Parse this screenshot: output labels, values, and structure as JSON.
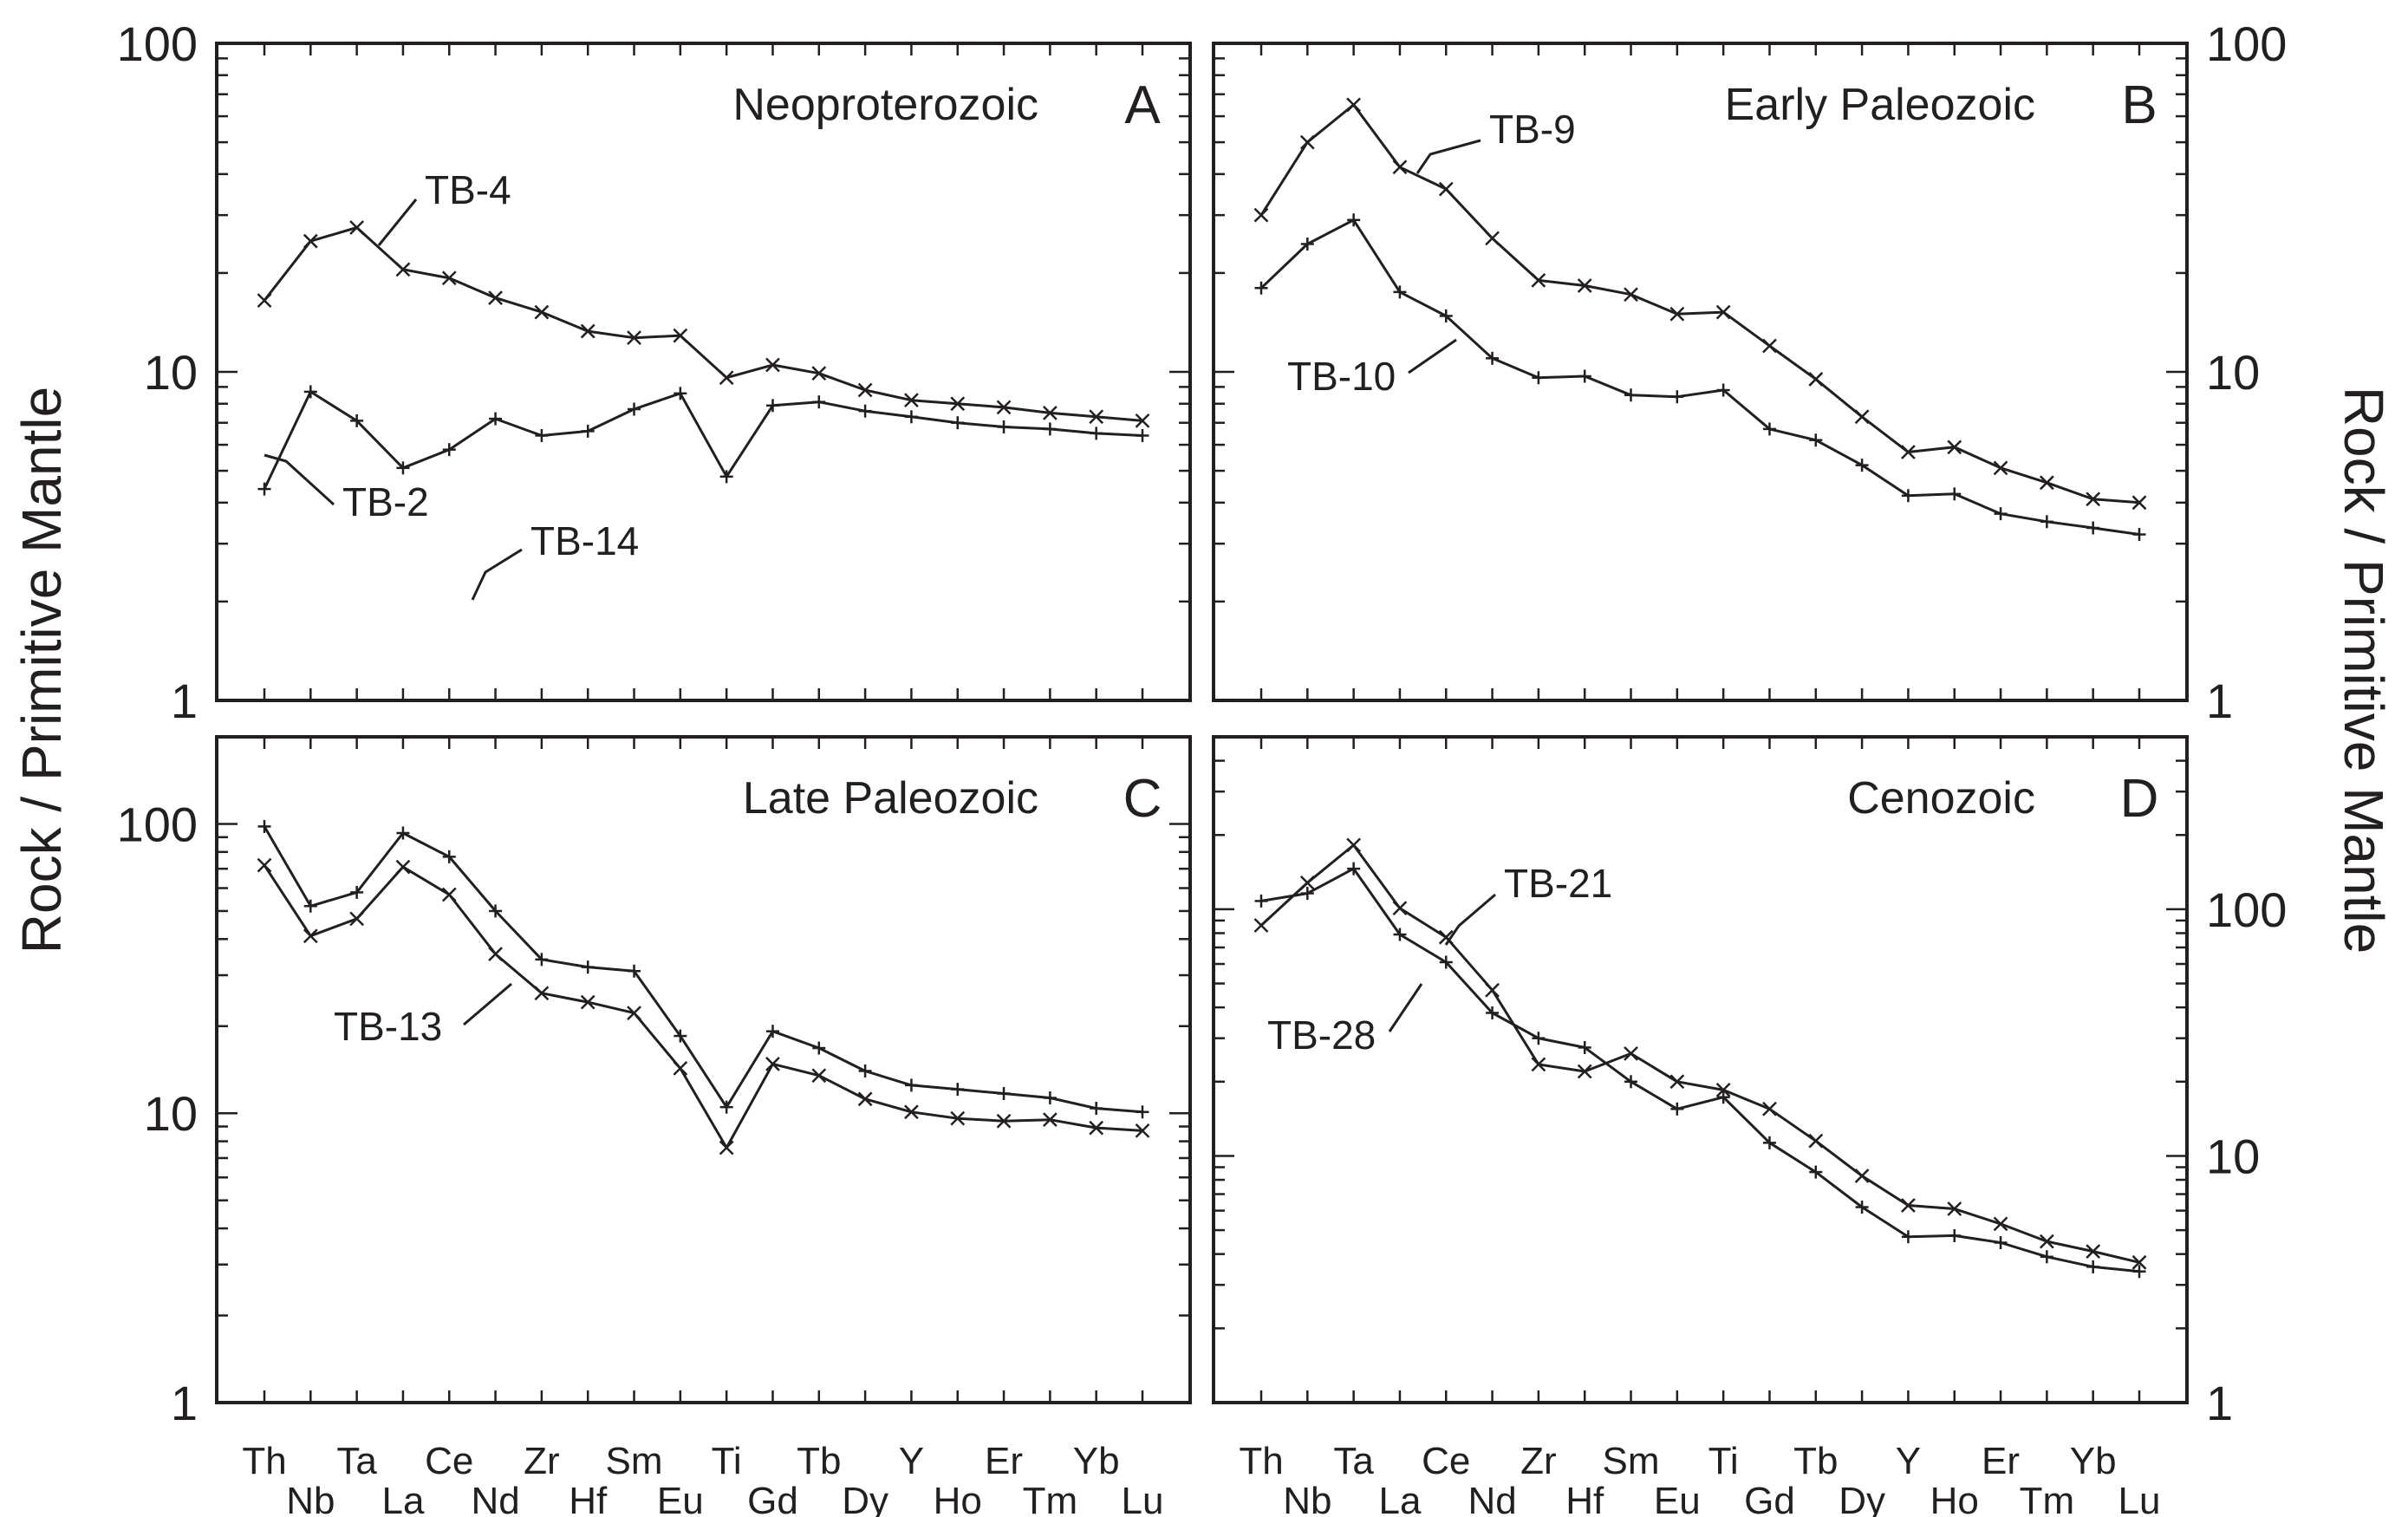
{
  "figure": {
    "ylabel_left": "Rock / Primitive Mantle",
    "ylabel_right": "Rock / Primitive Mantle",
    "elements_upper": [
      "Th",
      "Ta",
      "Ce",
      "Zr",
      "Sm",
      "Ti",
      "Tb",
      "Y",
      "Er",
      "Yb"
    ],
    "elements_lower": [
      "Nb",
      "La",
      "Nd",
      "Hf",
      "Eu",
      "Gd",
      "Dy",
      "Ho",
      "Tm",
      "Lu"
    ]
  },
  "chart_data": [
    {
      "type": "line",
      "panel_letter": "A",
      "title": "Neoproterozoic",
      "yscale": "log",
      "ylim": [
        1,
        100
      ],
      "ytick_labels": [
        "1",
        "10",
        "100"
      ],
      "ytick_values": [
        1,
        10,
        100
      ],
      "categories": [
        "Th",
        "Nb",
        "Ta",
        "La",
        "Ce",
        "Nd",
        "Zr",
        "Hf",
        "Sm",
        "Eu",
        "Ti",
        "Gd",
        "Tb",
        "Dy",
        "Y",
        "Ho",
        "Er",
        "Tm",
        "Yb",
        "Lu"
      ],
      "series": [
        {
          "name": "TB-4",
          "marker": "x",
          "values": [
            16.5,
            25,
            27.5,
            20.5,
            19.3,
            16.8,
            15.2,
            13.3,
            12.7,
            12.9,
            9.6,
            10.5,
            9.9,
            8.8,
            8.2,
            8.0,
            7.8,
            7.5,
            7.3,
            7.1
          ]
        },
        {
          "name": "TB-2",
          "marker": "+",
          "values": [
            4.4,
            8.7,
            7.1,
            5.1,
            5.8,
            7.2,
            6.4,
            6.6,
            7.7,
            8.6,
            4.8,
            7.9,
            8.1,
            7.6,
            7.3,
            7.0,
            6.8,
            6.7,
            6.5,
            6.4
          ]
        }
      ]
    },
    {
      "type": "line",
      "panel_letter": "B",
      "title": "Early Paleozoic",
      "yscale": "log",
      "ylim": [
        1,
        100
      ],
      "ytick_labels": [
        "1",
        "10",
        "100"
      ],
      "ytick_values": [
        1,
        10,
        100
      ],
      "categories": [
        "Th",
        "Nb",
        "Ta",
        "La",
        "Ce",
        "Nd",
        "Zr",
        "Hf",
        "Sm",
        "Eu",
        "Ti",
        "Gd",
        "Tb",
        "Dy",
        "Y",
        "Ho",
        "Er",
        "Tm",
        "Yb",
        "Lu"
      ],
      "series": [
        {
          "name": "TB-9",
          "marker": "x",
          "values": [
            30,
            50,
            65,
            42,
            36,
            25.5,
            19,
            18.3,
            17.2,
            15,
            15.2,
            12,
            9.5,
            7.3,
            5.7,
            5.9,
            5.1,
            4.6,
            4.1,
            4.0
          ]
        },
        {
          "name": "TB-10",
          "marker": "+",
          "values": [
            18,
            24.5,
            29,
            17.5,
            14.8,
            11,
            9.6,
            9.7,
            8.5,
            8.4,
            8.8,
            6.7,
            6.2,
            5.2,
            4.2,
            4.25,
            3.7,
            3.5,
            3.35,
            3.2
          ]
        }
      ]
    },
    {
      "type": "line",
      "panel_letter": "C",
      "title": "Late Paleozoic",
      "yscale": "log",
      "ylim": [
        1,
        200
      ],
      "ytick_labels": [
        "1",
        "10",
        "100"
      ],
      "ytick_values": [
        1,
        10,
        100
      ],
      "categories": [
        "Th",
        "Nb",
        "Ta",
        "La",
        "Ce",
        "Nd",
        "Zr",
        "Hf",
        "Sm",
        "Eu",
        "Ti",
        "Gd",
        "Tb",
        "Dy",
        "Y",
        "Ho",
        "Er",
        "Tm",
        "Yb",
        "Lu"
      ],
      "series": [
        {
          "name": "TB-14",
          "marker": "+",
          "values": [
            98,
            52,
            58,
            93,
            77,
            50,
            34,
            32,
            31,
            18.5,
            10.5,
            19.2,
            16.8,
            14,
            12.5,
            12.1,
            11.7,
            11.3,
            10.4,
            10.1
          ]
        },
        {
          "name": "TB-13",
          "marker": "x",
          "values": [
            72,
            41,
            47,
            71,
            57,
            35.5,
            26,
            24.2,
            22.2,
            14.3,
            7.6,
            14.8,
            13.5,
            11.2,
            10.1,
            9.6,
            9.4,
            9.5,
            8.9,
            8.7
          ]
        }
      ]
    },
    {
      "type": "line",
      "panel_letter": "D",
      "title": "Cenozoic",
      "yscale": "log",
      "ylim": [
        1,
        500
      ],
      "ytick_labels": [
        "1",
        "10",
        "100"
      ],
      "ytick_values": [
        1,
        10,
        100
      ],
      "categories": [
        "Th",
        "Nb",
        "Ta",
        "La",
        "Ce",
        "Nd",
        "Zr",
        "Hf",
        "Sm",
        "Eu",
        "Ti",
        "Gd",
        "Tb",
        "Dy",
        "Y",
        "Ho",
        "Er",
        "Tm",
        "Yb",
        "Lu"
      ],
      "series": [
        {
          "name": "TB-21",
          "marker": "x",
          "values": [
            86,
            128,
            182,
            101,
            77,
            47,
            23.5,
            22,
            26,
            20,
            18.5,
            15.5,
            11.5,
            8.3,
            6.3,
            6.1,
            5.3,
            4.5,
            4.1,
            3.7
          ]
        },
        {
          "name": "TB-28",
          "marker": "+",
          "values": [
            108,
            116,
            146,
            79,
            61,
            38,
            30,
            27.5,
            20,
            15.5,
            17.3,
            11.3,
            8.6,
            6.2,
            4.7,
            4.75,
            4.45,
            3.9,
            3.55,
            3.4
          ]
        }
      ]
    }
  ]
}
